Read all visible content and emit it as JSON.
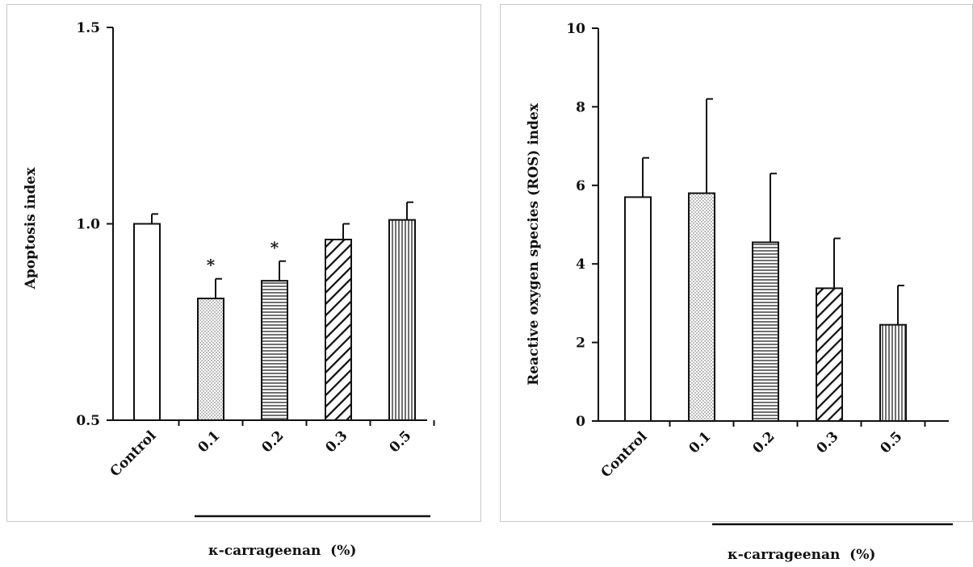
{
  "chart_data": [
    {
      "type": "bar",
      "ylabel": "Apoptosis index",
      "xlabel": "κ-carrageenan  (%)",
      "ylim": [
        0.5,
        1.5
      ],
      "yticks": [
        "0.5",
        "1.0",
        "1.5"
      ],
      "categories": [
        "Control",
        "0.1",
        "0.2",
        "0.3",
        "0.5"
      ],
      "values": [
        1.0,
        0.81,
        0.855,
        0.96,
        1.01
      ],
      "errors": [
        0.025,
        0.05,
        0.05,
        0.04,
        0.045
      ],
      "patterns": [
        "none",
        "dots",
        "hlines",
        "diag",
        "vlines"
      ],
      "annotations": [
        "",
        "*",
        "*",
        "",
        ""
      ],
      "grid": false
    },
    {
      "type": "bar",
      "ylabel": "Reactive oxygen species (ROS) index",
      "xlabel": "κ-carrageenan  (%)",
      "ylim": [
        0,
        10
      ],
      "yticks": [
        "0",
        "2",
        "4",
        "6",
        "8",
        "10"
      ],
      "categories": [
        "Control",
        "0.1",
        "0.2",
        "0.3",
        "0.5"
      ],
      "values": [
        5.7,
        5.8,
        4.55,
        3.38,
        2.45
      ],
      "errors": [
        1.0,
        2.4,
        1.75,
        1.27,
        1.0
      ],
      "patterns": [
        "none",
        "dots",
        "hlines",
        "diag",
        "vlines"
      ],
      "annotations": [
        "",
        "",
        "",
        "",
        ""
      ],
      "grid": false
    }
  ]
}
